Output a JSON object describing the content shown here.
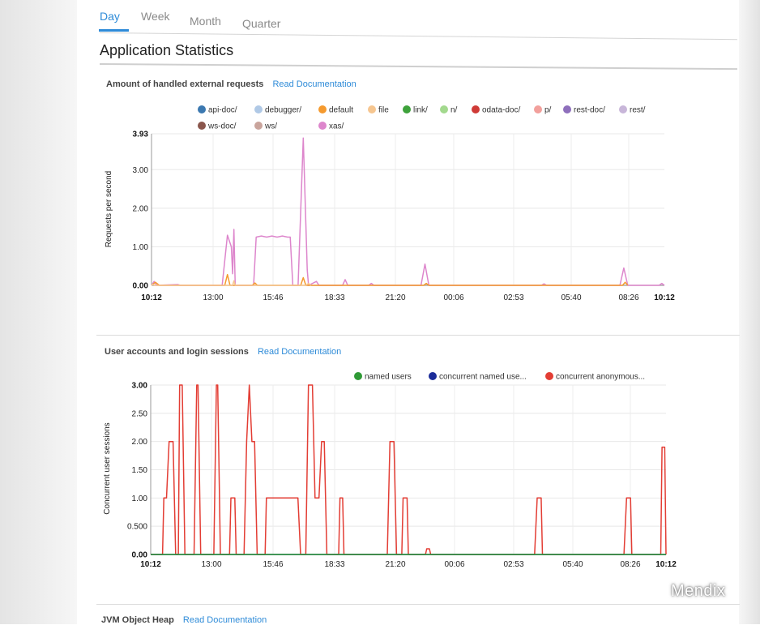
{
  "tabs": [
    {
      "label": "Day",
      "active": true
    },
    {
      "label": "Week",
      "active": false
    },
    {
      "label": "Month",
      "active": false
    },
    {
      "label": "Quarter",
      "active": false
    }
  ],
  "page_title": "Application Statistics",
  "sections": [
    {
      "title": "Amount of handled external requests",
      "link": "Read Documentation"
    },
    {
      "title": "User accounts and login sessions",
      "link": "Read Documentation"
    },
    {
      "title": "JVM Object Heap",
      "link": "Read Documentation"
    }
  ],
  "watermark": "Mendix",
  "chart_data": [
    {
      "type": "line",
      "title": "",
      "xlabel": "",
      "ylabel": "Requests per second",
      "ylim": [
        0,
        3.93
      ],
      "y_ticks": [
        "0.00",
        "1.00",
        "2.00",
        "3.00",
        "3.93"
      ],
      "x_ticks": [
        "10:12",
        "13:00",
        "15:46",
        "18:33",
        "21:20",
        "00:06",
        "02:53",
        "05:40",
        "08:26",
        "10:12"
      ],
      "grid": true,
      "legend_position": "top",
      "legend": [
        {
          "name": "api-doc/",
          "color": "#3b78b0"
        },
        {
          "name": "debugger/",
          "color": "#b0c9e6"
        },
        {
          "name": "default",
          "color": "#f59a2e"
        },
        {
          "name": "file",
          "color": "#f6c690"
        },
        {
          "name": "link/",
          "color": "#3ea23b"
        },
        {
          "name": "n/",
          "color": "#a3d98e"
        },
        {
          "name": "odata-doc/",
          "color": "#cf3a36"
        },
        {
          "name": "p/",
          "color": "#f2a09c"
        },
        {
          "name": "rest-doc/",
          "color": "#8e6fbc"
        },
        {
          "name": "rest/",
          "color": "#c8b6d9"
        },
        {
          "name": "ws-doc/",
          "color": "#8a564c"
        },
        {
          "name": "ws/",
          "color": "#c9a49c"
        },
        {
          "name": "xas/",
          "color": "#dd86cc"
        }
      ],
      "series": [
        {
          "name": "xas/",
          "color": "#dd86cc",
          "points": [
            [
              0,
              0
            ],
            [
              0.1,
              0.1
            ],
            [
              0.2,
              0
            ],
            [
              1.0,
              0.02
            ],
            [
              1.1,
              0
            ],
            [
              2.7,
              0
            ],
            [
              2.9,
              1.3
            ],
            [
              3.05,
              1.0
            ],
            [
              3.1,
              0.3
            ],
            [
              3.15,
              1.45
            ],
            [
              3.2,
              0
            ],
            [
              3.9,
              0
            ],
            [
              4.0,
              1.25
            ],
            [
              4.2,
              1.28
            ],
            [
              4.4,
              1.25
            ],
            [
              4.6,
              1.28
            ],
            [
              4.8,
              1.25
            ],
            [
              5.0,
              1.28
            ],
            [
              5.2,
              1.25
            ],
            [
              5.3,
              1.25
            ],
            [
              5.4,
              0
            ],
            [
              5.6,
              0
            ],
            [
              5.8,
              3.82
            ],
            [
              5.95,
              0.4
            ],
            [
              6.0,
              0
            ],
            [
              6.3,
              0.1
            ],
            [
              6.4,
              0
            ],
            [
              7.3,
              0
            ],
            [
              7.4,
              0.15
            ],
            [
              7.5,
              0
            ],
            [
              8.3,
              0
            ],
            [
              8.4,
              0.05
            ],
            [
              8.5,
              0
            ],
            [
              10.3,
              0
            ],
            [
              10.45,
              0.55
            ],
            [
              10.6,
              0
            ],
            [
              14.9,
              0
            ],
            [
              15.0,
              0.04
            ],
            [
              15.1,
              0
            ],
            [
              17.9,
              0
            ],
            [
              18.05,
              0.45
            ],
            [
              18.2,
              0
            ],
            [
              19.4,
              0
            ],
            [
              19.5,
              0.05
            ],
            [
              19.6,
              0
            ]
          ]
        },
        {
          "name": "default",
          "color": "#f59a2e",
          "points": [
            [
              0,
              0
            ],
            [
              0.15,
              0.08
            ],
            [
              0.3,
              0
            ],
            [
              2.8,
              0
            ],
            [
              2.9,
              0.28
            ],
            [
              3.0,
              0
            ],
            [
              3.85,
              0
            ],
            [
              3.95,
              0.06
            ],
            [
              4.05,
              0
            ],
            [
              5.7,
              0
            ],
            [
              5.8,
              0.2
            ],
            [
              5.9,
              0
            ],
            [
              10.4,
              0
            ],
            [
              10.5,
              0.05
            ],
            [
              10.6,
              0
            ],
            [
              18.0,
              0
            ],
            [
              18.1,
              0.08
            ],
            [
              18.2,
              0
            ]
          ]
        },
        {
          "name": "file",
          "color": "#f6c690",
          "points": [
            [
              0,
              0
            ],
            [
              0.05,
              0.03
            ],
            [
              0.12,
              0
            ],
            [
              3.1,
              0
            ],
            [
              3.15,
              0.12
            ],
            [
              3.2,
              0
            ],
            [
              5.9,
              0
            ],
            [
              6.0,
              0.05
            ],
            [
              6.1,
              0
            ]
          ]
        }
      ]
    },
    {
      "type": "line",
      "title": "",
      "xlabel": "",
      "ylabel": "Concurrent user sessions",
      "ylim": [
        0,
        3.0
      ],
      "y_ticks": [
        "0.00",
        "0.500",
        "1.00",
        "1.50",
        "2.00",
        "2.50",
        "3.00"
      ],
      "x_ticks": [
        "10:12",
        "13:00",
        "15:46",
        "18:33",
        "21:20",
        "00:06",
        "02:53",
        "05:40",
        "08:26",
        "10:12"
      ],
      "grid": true,
      "legend_position": "top-right",
      "legend": [
        {
          "name": "named users",
          "color": "#2f9a36"
        },
        {
          "name": "concurrent named use...",
          "color": "#1b2c99"
        },
        {
          "name": "concurrent anonymous...",
          "color": "#e33d34"
        }
      ],
      "series": [
        {
          "name": "concurrent anonymous...",
          "color": "#e33d34",
          "points": [
            [
              0,
              0
            ],
            [
              0.45,
              0
            ],
            [
              0.5,
              1
            ],
            [
              0.6,
              1
            ],
            [
              0.7,
              2
            ],
            [
              0.85,
              2
            ],
            [
              0.95,
              0
            ],
            [
              1.05,
              0
            ],
            [
              1.1,
              3
            ],
            [
              1.2,
              3
            ],
            [
              1.3,
              0
            ],
            [
              1.65,
              0
            ],
            [
              1.75,
              3
            ],
            [
              1.8,
              3
            ],
            [
              1.9,
              0
            ],
            [
              2.4,
              0
            ],
            [
              2.5,
              3
            ],
            [
              2.55,
              3
            ],
            [
              2.65,
              0
            ],
            [
              3.0,
              0
            ],
            [
              3.05,
              1
            ],
            [
              3.2,
              1
            ],
            [
              3.25,
              0
            ],
            [
              3.55,
              0
            ],
            [
              3.6,
              1
            ],
            [
              3.65,
              2
            ],
            [
              3.75,
              3
            ],
            [
              3.85,
              2
            ],
            [
              3.95,
              2
            ],
            [
              4.0,
              1
            ],
            [
              4.05,
              0
            ],
            [
              4.35,
              0
            ],
            [
              4.4,
              1
            ],
            [
              5.6,
              1
            ],
            [
              5.7,
              0
            ],
            [
              5.9,
              0
            ],
            [
              6.0,
              3
            ],
            [
              6.15,
              3
            ],
            [
              6.25,
              1
            ],
            [
              6.4,
              1
            ],
            [
              6.5,
              2
            ],
            [
              6.6,
              2
            ],
            [
              6.7,
              0
            ],
            [
              7.15,
              0
            ],
            [
              7.2,
              1
            ],
            [
              7.3,
              1
            ],
            [
              7.35,
              0
            ],
            [
              9.0,
              0
            ],
            [
              9.1,
              2
            ],
            [
              9.25,
              2
            ],
            [
              9.35,
              0
            ],
            [
              9.55,
              0
            ],
            [
              9.6,
              1
            ],
            [
              9.75,
              1
            ],
            [
              9.8,
              0
            ],
            [
              10.45,
              0
            ],
            [
              10.5,
              0.1
            ],
            [
              10.6,
              0.1
            ],
            [
              10.65,
              0
            ],
            [
              14.6,
              0
            ],
            [
              14.7,
              1
            ],
            [
              14.85,
              1
            ],
            [
              14.9,
              0
            ],
            [
              18.0,
              0
            ],
            [
              18.1,
              1
            ],
            [
              18.25,
              1
            ],
            [
              18.3,
              0
            ],
            [
              19.4,
              0
            ],
            [
              19.45,
              1.9
            ],
            [
              19.55,
              1.9
            ],
            [
              19.6,
              0
            ]
          ]
        },
        {
          "name": "concurrent named use...",
          "color": "#1b2c99",
          "points": [
            [
              0,
              0
            ],
            [
              19.6,
              0
            ]
          ]
        },
        {
          "name": "named users",
          "color": "#2f9a36",
          "points": [
            [
              0,
              0
            ],
            [
              19.6,
              0
            ]
          ]
        }
      ]
    }
  ]
}
